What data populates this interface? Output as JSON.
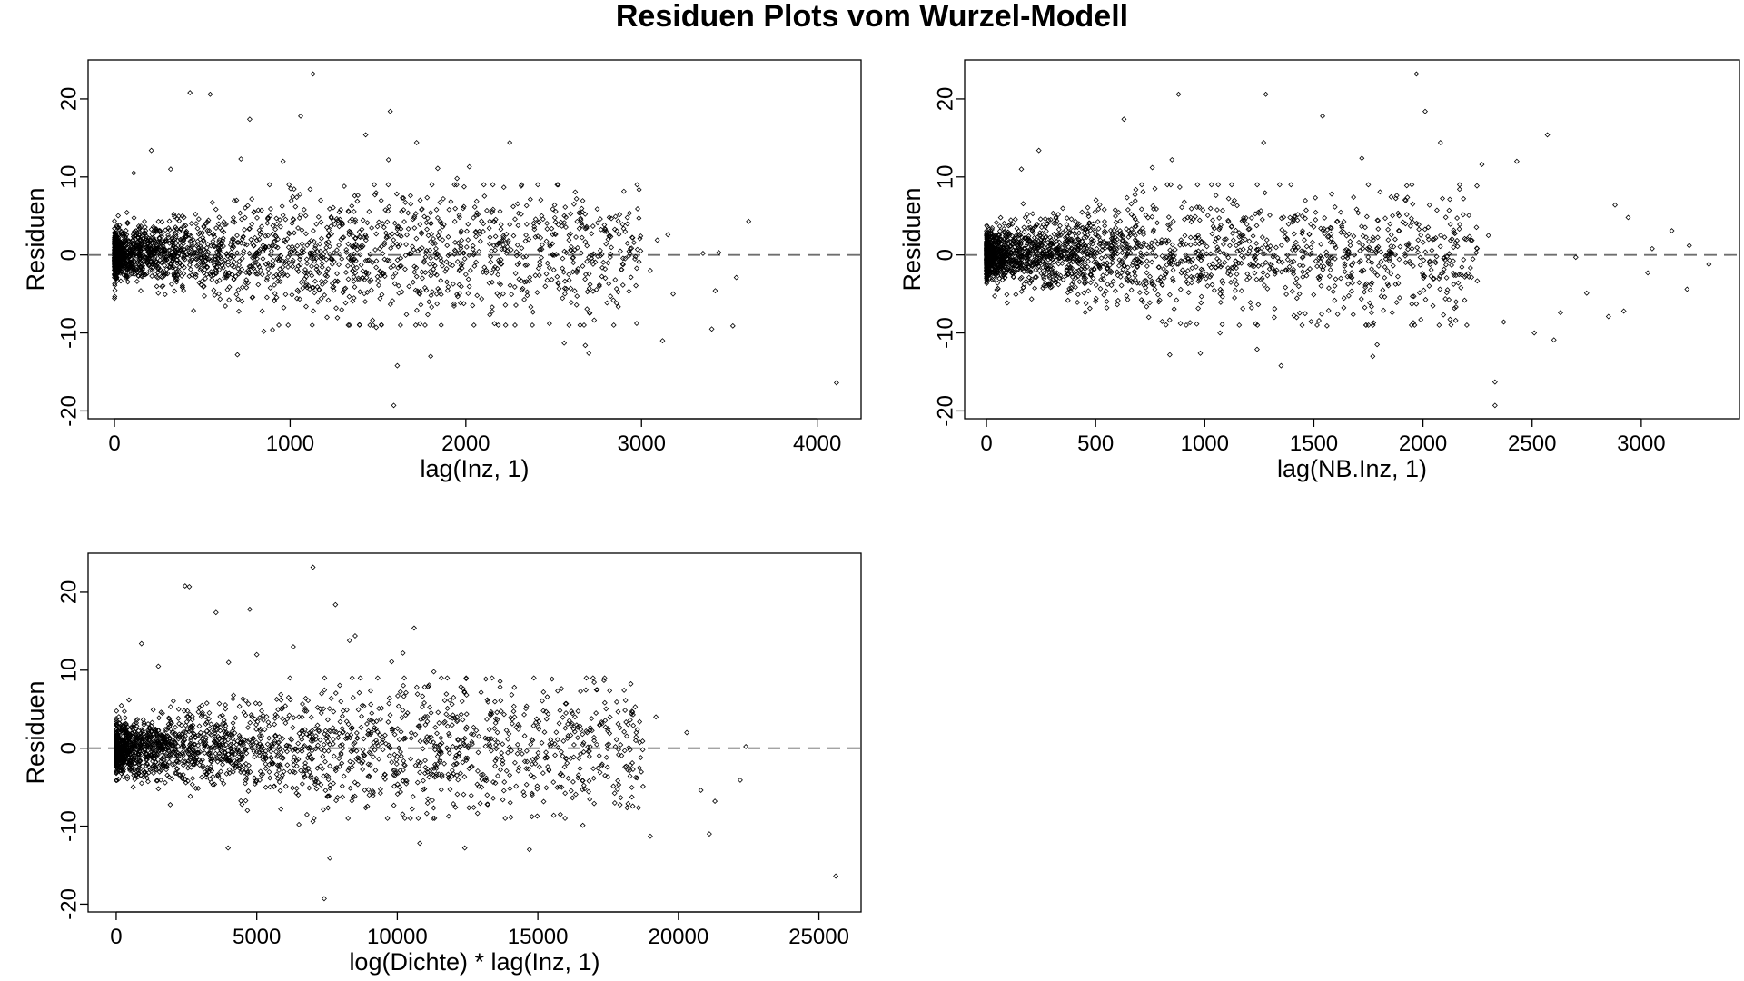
{
  "title": "Residuen Plots vom Wurzel-Modell",
  "chart_data": [
    {
      "type": "scatter",
      "xlabel": "lag(Inz, 1)",
      "ylabel": "Residuen",
      "xlim": [
        -150,
        4250
      ],
      "ylim": [
        -21,
        25
      ],
      "xticks": [
        0,
        1000,
        2000,
        3000,
        4000
      ],
      "xtick_labels": [
        "0",
        "1000",
        "2000",
        "3000",
        "4000"
      ],
      "yticks": [
        -20,
        -10,
        0,
        10,
        20
      ],
      "ytick_labels": [
        "-20",
        "-10",
        "0",
        "10",
        "20"
      ],
      "reference_line": {
        "y": 0,
        "style": "dashed"
      },
      "point_shape": "open-diamond",
      "points": [
        [
          430,
          20.8
        ],
        [
          545,
          20.6
        ],
        [
          1130,
          23.2
        ],
        [
          1060,
          17.8
        ],
        [
          770,
          17.4
        ],
        [
          1570,
          18.4
        ],
        [
          1430,
          15.4
        ],
        [
          1560,
          12.2
        ],
        [
          1720,
          14.4
        ],
        [
          2250,
          14.4
        ],
        [
          2020,
          11.3
        ],
        [
          1840,
          11.1
        ],
        [
          1950,
          9.8
        ],
        [
          2270,
          6.2
        ],
        [
          2630,
          7.2
        ],
        [
          2680,
          3.4
        ],
        [
          2810,
          2.0
        ],
        [
          2950,
          2.2
        ],
        [
          3090,
          1.9
        ],
        [
          3150,
          2.6
        ],
        [
          3610,
          4.3
        ],
        [
          3350,
          0.2
        ],
        [
          3440,
          0.3
        ],
        [
          3050,
          -2.0
        ],
        [
          3180,
          -5.0
        ],
        [
          3420,
          -4.6
        ],
        [
          3540,
          -2.9
        ],
        [
          3520,
          -9.1
        ],
        [
          3400,
          -9.5
        ],
        [
          3120,
          -11.0
        ],
        [
          2560,
          -11.3
        ],
        [
          2680,
          -11.6
        ],
        [
          2700,
          -12.6
        ],
        [
          2840,
          -5.8
        ],
        [
          4110,
          -16.4
        ],
        [
          1610,
          -14.2
        ],
        [
          1800,
          -13.0
        ],
        [
          1590,
          -19.3
        ],
        [
          700,
          -12.8
        ],
        [
          850,
          -9.8
        ],
        [
          900,
          -9.6
        ],
        [
          1210,
          -8.0
        ],
        [
          1490,
          -9.3
        ],
        [
          210,
          13.4
        ],
        [
          110,
          10.5
        ],
        [
          720,
          12.3
        ],
        [
          960,
          12.0
        ],
        [
          320,
          11.0
        ],
        [
          1280,
          5.5
        ],
        [
          1370,
          4.2
        ],
        [
          1490,
          2.7
        ],
        [
          1700,
          -3.5
        ],
        [
          1900,
          -4.1
        ],
        [
          2100,
          4.0
        ],
        [
          2410,
          2.4
        ],
        [
          2520,
          -2.8
        ],
        [
          2600,
          -6.1
        ],
        [
          2000,
          -2.5
        ],
        [
          2200,
          3.3
        ],
        [
          2350,
          -5.2
        ],
        [
          1830,
          0.8
        ],
        [
          1750,
          -2.2
        ]
      ]
    },
    {
      "type": "scatter",
      "xlabel": "lag(NB.Inz, 1)",
      "ylabel": "Residuen",
      "xlim": [
        -100,
        3450
      ],
      "ylim": [
        -21,
        25
      ],
      "xticks": [
        0,
        500,
        1000,
        1500,
        2000,
        2500,
        3000
      ],
      "xtick_labels": [
        "0",
        "500",
        "1000",
        "1500",
        "2000",
        "2500",
        "3000"
      ],
      "yticks": [
        -20,
        -10,
        0,
        10,
        20
      ],
      "ytick_labels": [
        "-20",
        "-10",
        "0",
        "10",
        "20"
      ],
      "reference_line": {
        "y": 0,
        "style": "dashed"
      },
      "point_shape": "open-diamond",
      "points": [
        [
          1970,
          23.2
        ],
        [
          880,
          20.6
        ],
        [
          1280,
          20.6
        ],
        [
          2010,
          18.4
        ],
        [
          1540,
          17.8
        ],
        [
          630,
          17.4
        ],
        [
          2570,
          15.4
        ],
        [
          1270,
          14.4
        ],
        [
          2080,
          14.4
        ],
        [
          850,
          12.2
        ],
        [
          1720,
          12.4
        ],
        [
          2430,
          12.0
        ],
        [
          2270,
          11.6
        ],
        [
          240,
          13.4
        ],
        [
          160,
          11.0
        ],
        [
          760,
          11.2
        ],
        [
          2880,
          6.4
        ],
        [
          2940,
          4.8
        ],
        [
          3140,
          3.1
        ],
        [
          3220,
          1.2
        ],
        [
          3310,
          -1.2
        ],
        [
          3210,
          -4.4
        ],
        [
          2850,
          -7.9
        ],
        [
          2920,
          -7.2
        ],
        [
          2600,
          -10.9
        ],
        [
          2510,
          -10.0
        ],
        [
          2330,
          -16.3
        ],
        [
          2330,
          -19.3
        ],
        [
          1770,
          -13.0
        ],
        [
          1790,
          -11.5
        ],
        [
          1350,
          -14.2
        ],
        [
          1240,
          -12.1
        ],
        [
          840,
          -12.8
        ],
        [
          980,
          -12.6
        ],
        [
          1070,
          -10.0
        ],
        [
          1080,
          -8.9
        ],
        [
          1560,
          -9.1
        ],
        [
          1990,
          -8.3
        ],
        [
          2150,
          -8.4
        ],
        [
          2370,
          -8.6
        ],
        [
          2630,
          -7.4
        ],
        [
          2750,
          -4.9
        ],
        [
          3030,
          -2.3
        ],
        [
          1500,
          3.6
        ],
        [
          1600,
          -3.1
        ],
        [
          1850,
          0.4
        ],
        [
          2300,
          2.5
        ],
        [
          2700,
          -0.3
        ],
        [
          3050,
          0.8
        ]
      ]
    },
    {
      "type": "scatter",
      "xlabel": "log(Dichte) * lag(Inz, 1)",
      "ylabel": "Residuen",
      "xlim": [
        -1000,
        26500
      ],
      "ylim": [
        -21,
        25
      ],
      "xticks": [
        0,
        5000,
        10000,
        15000,
        20000,
        25000
      ],
      "xtick_labels": [
        "0",
        "5000",
        "10000",
        "15000",
        "20000",
        "25000"
      ],
      "yticks": [
        -20,
        -10,
        0,
        10,
        20
      ],
      "ytick_labels": [
        "-20",
        "-10",
        "0",
        "10",
        "20"
      ],
      "reference_line": {
        "y": 0,
        "style": "dashed"
      },
      "point_shape": "open-diamond",
      "points": [
        [
          2450,
          20.8
        ],
        [
          2600,
          20.7
        ],
        [
          7000,
          23.2
        ],
        [
          4750,
          17.8
        ],
        [
          3550,
          17.4
        ],
        [
          7800,
          18.4
        ],
        [
          10600,
          15.4
        ],
        [
          10200,
          12.2
        ],
        [
          8500,
          14.4
        ],
        [
          8300,
          13.8
        ],
        [
          6300,
          13.0
        ],
        [
          9800,
          11.1
        ],
        [
          11300,
          9.8
        ],
        [
          13200,
          6.2
        ],
        [
          15200,
          7.2
        ],
        [
          16000,
          4.5
        ],
        [
          17500,
          2.5
        ],
        [
          18500,
          2.0
        ],
        [
          19200,
          4.0
        ],
        [
          20300,
          2.0
        ],
        [
          22400,
          0.2
        ],
        [
          22200,
          -4.1
        ],
        [
          20800,
          -5.4
        ],
        [
          21100,
          -11.0
        ],
        [
          21300,
          -6.8
        ],
        [
          19000,
          -11.3
        ],
        [
          16600,
          -9.9
        ],
        [
          15800,
          -8.5
        ],
        [
          14800,
          -6.0
        ],
        [
          14700,
          -13.0
        ],
        [
          12400,
          -12.8
        ],
        [
          10800,
          -12.2
        ],
        [
          7600,
          -14.1
        ],
        [
          7400,
          -19.3
        ],
        [
          7000,
          -9.4
        ],
        [
          6500,
          -9.8
        ],
        [
          3980,
          -12.8
        ],
        [
          25600,
          -16.4
        ],
        [
          900,
          13.4
        ],
        [
          1500,
          10.5
        ],
        [
          4000,
          11.0
        ],
        [
          5000,
          12.0
        ],
        [
          12000,
          6.5
        ],
        [
          13000,
          -5.0
        ],
        [
          16500,
          -2.6
        ],
        [
          17800,
          1.1
        ],
        [
          18200,
          -2.8
        ],
        [
          11000,
          3.0
        ],
        [
          9000,
          -6.0
        ]
      ]
    }
  ]
}
